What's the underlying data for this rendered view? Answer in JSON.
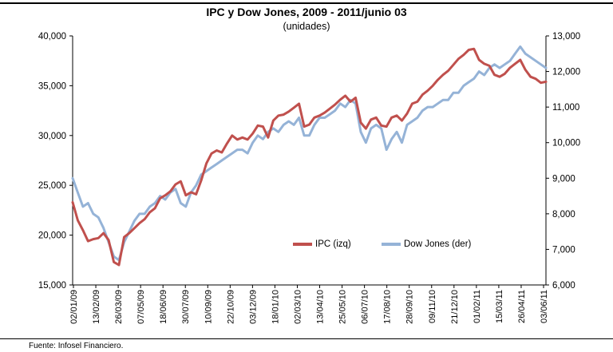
{
  "chart_data": {
    "type": "line",
    "title": "IPC y Dow Jones, 2009 - 2011/junio 03",
    "subtitle": "(unidades)",
    "source": "Fuente:  Infosel Financiero.",
    "x_tick_labels": [
      "02/01/09",
      "13/02/09",
      "26/03/09",
      "07/05/09",
      "18/06/09",
      "30/07/09",
      "10/09/09",
      "22/10/09",
      "03/12/09",
      "18/01/10",
      "02/03/10",
      "13/04/10",
      "25/05/10",
      "06/07/10",
      "17/08/10",
      "28/09/10",
      "09/11/10",
      "21/12/10",
      "01/02/11",
      "15/03/11",
      "26/04/11",
      "03/06/11"
    ],
    "y_left": {
      "min": 15000,
      "max": 40000,
      "ticks": [
        15000,
        20000,
        25000,
        30000,
        35000,
        40000
      ]
    },
    "y_right": {
      "min": 6000,
      "max": 13000,
      "ticks": [
        6000,
        7000,
        8000,
        9000,
        10000,
        11000,
        12000,
        13000
      ]
    },
    "legend_position": "bottom-right inside plot",
    "series": [
      {
        "name": "IPC (izq)",
        "axis": "left",
        "color": "#C0504D",
        "values": [
          23300,
          21500,
          20500,
          19400,
          19600,
          19700,
          20200,
          19500,
          17300,
          17000,
          19800,
          20200,
          20700,
          21200,
          21600,
          22300,
          22700,
          23700,
          24000,
          24400,
          25100,
          25400,
          24000,
          24300,
          24100,
          25500,
          27200,
          28200,
          28500,
          28300,
          29200,
          30000,
          29600,
          29800,
          29600,
          30200,
          31000,
          30900,
          29800,
          31500,
          32000,
          32100,
          32400,
          32800,
          33200,
          30900,
          31100,
          31800,
          32000,
          32300,
          32700,
          33100,
          33600,
          34000,
          33400,
          33800,
          31300,
          30700,
          31600,
          31800,
          31000,
          30900,
          31800,
          32000,
          31500,
          32200,
          33200,
          33400,
          34100,
          34500,
          35000,
          35600,
          36100,
          36500,
          37100,
          37700,
          38100,
          38600,
          38700,
          37600,
          37200,
          37000,
          36100,
          35900,
          36200,
          36800,
          37200,
          37600,
          36600,
          35900,
          35700,
          35300,
          35400
        ]
      },
      {
        "name": "Dow Jones (der)",
        "axis": "right",
        "color": "#95B3D7",
        "values": [
          9000,
          8600,
          8200,
          8300,
          8000,
          7900,
          7600,
          7200,
          6800,
          6700,
          7200,
          7500,
          7800,
          8000,
          8000,
          8200,
          8300,
          8500,
          8400,
          8600,
          8700,
          8300,
          8200,
          8600,
          8800,
          9100,
          9200,
          9300,
          9400,
          9500,
          9600,
          9700,
          9800,
          9800,
          9700,
          10000,
          10200,
          10100,
          10300,
          10400,
          10300,
          10500,
          10600,
          10500,
          10700,
          10200,
          10200,
          10500,
          10700,
          10700,
          10800,
          10900,
          11100,
          11000,
          11200,
          11100,
          10300,
          10000,
          10400,
          10500,
          10400,
          9800,
          10100,
          10300,
          10000,
          10500,
          10600,
          10700,
          10900,
          11000,
          11000,
          11100,
          11200,
          11200,
          11400,
          11400,
          11600,
          11700,
          11800,
          12000,
          11900,
          12100,
          12200,
          12100,
          12200,
          12300,
          12500,
          12700,
          12500,
          12400,
          12300,
          12200,
          12100
        ]
      }
    ]
  }
}
